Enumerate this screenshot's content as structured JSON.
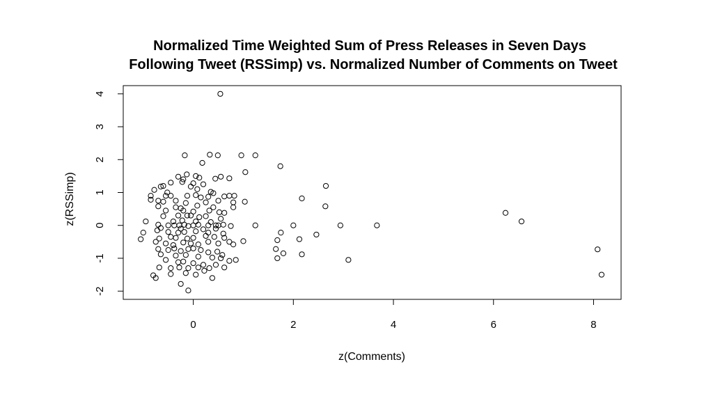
{
  "chart_data": {
    "type": "scatter",
    "title_line1": "Normalized Time Weighted Sum of Press Releases in Seven Days",
    "title_line2": "Following Tweet (RSSimp) vs. Normalized Number of Comments on Tweet",
    "xlabel": "z(Comments)",
    "ylabel": "z(RSSimp)",
    "xlim": [
      -1.4,
      8.55
    ],
    "ylim": [
      -2.25,
      4.25
    ],
    "xticks": [
      0,
      2,
      4,
      6,
      8
    ],
    "yticks": [
      -2,
      -1,
      0,
      1,
      2,
      3,
      4
    ],
    "xtick_labels": [
      "0",
      "2",
      "4",
      "6",
      "8"
    ],
    "ytick_labels": [
      "-2",
      "-1",
      "0",
      "1",
      "2",
      "3",
      "4"
    ],
    "grid": false,
    "points": [
      [
        0.54,
        4.0
      ],
      [
        -0.17,
        2.13
      ],
      [
        0.33,
        2.15
      ],
      [
        0.49,
        2.13
      ],
      [
        0.96,
        2.13
      ],
      [
        1.24,
        2.13
      ],
      [
        0.18,
        1.9
      ],
      [
        1.74,
        1.8
      ],
      [
        1.04,
        1.62
      ],
      [
        -0.3,
        1.48
      ],
      [
        -0.2,
        1.4
      ],
      [
        -0.13,
        1.55
      ],
      [
        0.05,
        1.5
      ],
      [
        0.12,
        1.45
      ],
      [
        0.44,
        1.42
      ],
      [
        0.55,
        1.48
      ],
      [
        0.72,
        1.43
      ],
      [
        -0.45,
        1.3
      ],
      [
        -0.22,
        1.32
      ],
      [
        0.0,
        1.28
      ],
      [
        0.2,
        1.25
      ],
      [
        -0.6,
        1.2
      ],
      [
        -0.65,
        1.18
      ],
      [
        -0.05,
        1.18
      ],
      [
        0.08,
        1.1
      ],
      [
        -0.78,
        1.08
      ],
      [
        -0.52,
        1.0
      ],
      [
        0.35,
        1.02
      ],
      [
        0.4,
        0.98
      ],
      [
        2.65,
        1.2
      ],
      [
        -0.85,
        0.9
      ],
      [
        -0.55,
        0.9
      ],
      [
        -0.45,
        0.9
      ],
      [
        -0.12,
        0.9
      ],
      [
        0.05,
        0.92
      ],
      [
        0.15,
        0.85
      ],
      [
        0.3,
        0.87
      ],
      [
        0.62,
        0.88
      ],
      [
        0.72,
        0.9
      ],
      [
        0.82,
        0.9
      ],
      [
        2.17,
        0.82
      ],
      [
        -0.85,
        0.78
      ],
      [
        -0.7,
        0.75
      ],
      [
        -0.6,
        0.72
      ],
      [
        -0.35,
        0.75
      ],
      [
        0.25,
        0.7
      ],
      [
        0.5,
        0.75
      ],
      [
        0.8,
        0.7
      ],
      [
        1.03,
        0.72
      ],
      [
        -0.15,
        0.68
      ],
      [
        -0.7,
        0.58
      ],
      [
        -0.35,
        0.55
      ],
      [
        -0.25,
        0.52
      ],
      [
        0.08,
        0.6
      ],
      [
        0.4,
        0.55
      ],
      [
        0.8,
        0.55
      ],
      [
        2.64,
        0.58
      ],
      [
        -0.55,
        0.45
      ],
      [
        -0.2,
        0.45
      ],
      [
        0.0,
        0.42
      ],
      [
        0.32,
        0.45
      ],
      [
        0.52,
        0.4
      ],
      [
        0.62,
        0.38
      ],
      [
        6.24,
        0.38
      ],
      [
        -0.6,
        0.28
      ],
      [
        -0.3,
        0.3
      ],
      [
        -0.12,
        0.3
      ],
      [
        -0.05,
        0.3
      ],
      [
        0.12,
        0.25
      ],
      [
        0.25,
        0.28
      ],
      [
        0.55,
        0.2
      ],
      [
        -0.95,
        0.12
      ],
      [
        -0.4,
        0.12
      ],
      [
        -0.22,
        0.15
      ],
      [
        0.05,
        0.12
      ],
      [
        0.35,
        0.1
      ],
      [
        6.56,
        0.12
      ],
      [
        -0.7,
        0.02
      ],
      [
        -0.5,
        0.0
      ],
      [
        -0.38,
        0.0
      ],
      [
        -0.28,
        0.0
      ],
      [
        -0.18,
        0.02
      ],
      [
        -0.1,
        -0.02
      ],
      [
        0.0,
        0.0
      ],
      [
        0.1,
        0.02
      ],
      [
        0.3,
        0.0
      ],
      [
        0.45,
        0.0
      ],
      [
        0.5,
        0.0
      ],
      [
        0.6,
        0.02
      ],
      [
        0.75,
        -0.02
      ],
      [
        1.24,
        0.0
      ],
      [
        2.0,
        0.0
      ],
      [
        2.94,
        0.0
      ],
      [
        3.67,
        0.0
      ],
      [
        -0.65,
        -0.08
      ],
      [
        -0.25,
        -0.1
      ],
      [
        0.2,
        -0.12
      ],
      [
        0.45,
        -0.1
      ],
      [
        -1.0,
        -0.22
      ],
      [
        -0.72,
        -0.15
      ],
      [
        -0.5,
        -0.2
      ],
      [
        -0.3,
        -0.22
      ],
      [
        -0.18,
        -0.2
      ],
      [
        0.05,
        -0.18
      ],
      [
        0.3,
        -0.22
      ],
      [
        0.6,
        -0.25
      ],
      [
        1.75,
        -0.22
      ],
      [
        2.46,
        -0.28
      ],
      [
        -0.68,
        -0.4
      ],
      [
        -0.45,
        -0.35
      ],
      [
        -0.35,
        -0.38
      ],
      [
        -0.12,
        -0.4
      ],
      [
        0.0,
        -0.38
      ],
      [
        0.25,
        -0.32
      ],
      [
        0.42,
        -0.35
      ],
      [
        0.62,
        -0.38
      ],
      [
        0.72,
        -0.5
      ],
      [
        1.0,
        -0.48
      ],
      [
        1.68,
        -0.45
      ],
      [
        2.12,
        -0.42
      ],
      [
        -1.05,
        -0.42
      ],
      [
        -0.75,
        -0.5
      ],
      [
        -0.55,
        -0.55
      ],
      [
        -0.4,
        -0.6
      ],
      [
        -0.2,
        -0.52
      ],
      [
        -0.05,
        -0.55
      ],
      [
        0.1,
        -0.58
      ],
      [
        0.3,
        -0.5
      ],
      [
        0.5,
        -0.55
      ],
      [
        0.8,
        -0.58
      ],
      [
        1.65,
        -0.72
      ],
      [
        1.8,
        -0.85
      ],
      [
        -0.7,
        -0.72
      ],
      [
        -0.5,
        -0.75
      ],
      [
        -0.38,
        -0.7
      ],
      [
        -0.25,
        -0.78
      ],
      [
        -0.1,
        -0.72
      ],
      [
        0.0,
        -0.7
      ],
      [
        0.15,
        -0.75
      ],
      [
        0.3,
        -0.82
      ],
      [
        0.48,
        -0.8
      ],
      [
        0.58,
        -0.9
      ],
      [
        2.17,
        -0.88
      ],
      [
        -0.65,
        -0.88
      ],
      [
        -0.35,
        -0.92
      ],
      [
        -0.15,
        -0.9
      ],
      [
        0.1,
        -0.95
      ],
      [
        0.38,
        -0.98
      ],
      [
        0.55,
        -1.0
      ],
      [
        0.72,
        -1.08
      ],
      [
        0.85,
        -1.05
      ],
      [
        1.68,
        -1.0
      ],
      [
        3.1,
        -1.05
      ],
      [
        -0.55,
        -1.05
      ],
      [
        -0.3,
        -1.12
      ],
      [
        -0.2,
        -1.1
      ],
      [
        0.0,
        -1.15
      ],
      [
        0.2,
        -1.2
      ],
      [
        0.45,
        -1.2
      ],
      [
        -0.68,
        -1.28
      ],
      [
        -0.45,
        -1.3
      ],
      [
        -0.28,
        -1.28
      ],
      [
        -0.1,
        -1.3
      ],
      [
        0.1,
        -1.28
      ],
      [
        0.22,
        -1.38
      ],
      [
        0.32,
        -1.3
      ],
      [
        0.62,
        -1.28
      ],
      [
        -0.8,
        -1.52
      ],
      [
        -0.45,
        -1.48
      ],
      [
        -0.15,
        -1.45
      ],
      [
        0.05,
        -1.5
      ],
      [
        0.38,
        -1.6
      ],
      [
        -0.75,
        -1.6
      ],
      [
        -0.25,
        -1.78
      ],
      [
        -0.1,
        -1.98
      ],
      [
        8.08,
        -0.73
      ],
      [
        8.16,
        -1.5
      ]
    ]
  }
}
